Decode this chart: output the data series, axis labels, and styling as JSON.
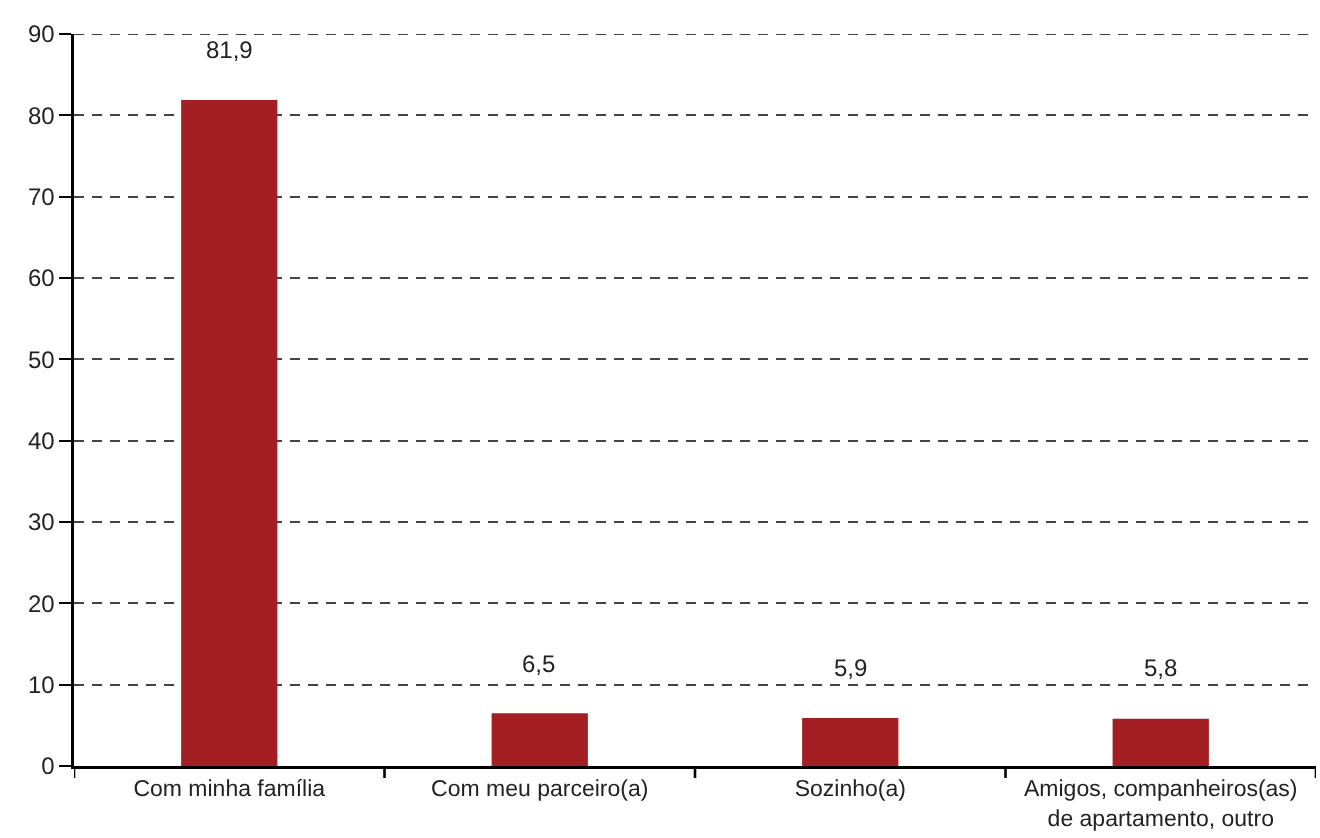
{
  "chart_data": {
    "type": "bar",
    "categories": [
      "Com minha família",
      "Com meu parceiro(a)",
      "Sozinho(a)",
      "Amigos, companheiros(as)\nde apartamento, outro"
    ],
    "values": [
      81.9,
      6.5,
      5.9,
      5.8
    ],
    "color": "#a31f24",
    "value_labels": [
      "81,9",
      "6,5",
      "5,9",
      "5,8"
    ],
    "ylim": [
      0,
      90
    ],
    "yticks": [
      0,
      10,
      20,
      30,
      40,
      50,
      60,
      70,
      80,
      90
    ],
    "grid": "y"
  }
}
